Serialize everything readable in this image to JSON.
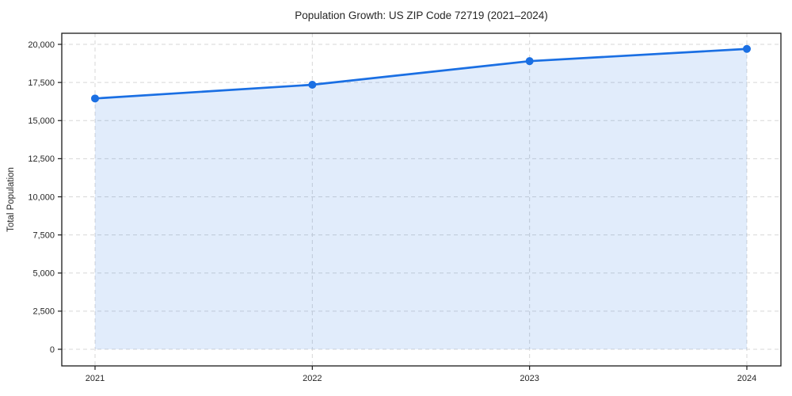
{
  "figure": {
    "title": "Population Growth: US ZIP Code 72719 (2021–2024)",
    "ylabel": "Total Population"
  },
  "chart_data": {
    "type": "area",
    "title": "Population Growth: US ZIP Code 72719 (2021–2024)",
    "xlabel": "",
    "ylabel": "Total Population",
    "categories": [
      "2021",
      "2022",
      "2023",
      "2024"
    ],
    "values": [
      16450,
      17350,
      18900,
      19700
    ],
    "series_name": "Total Population",
    "ylim": [
      0,
      20000
    ],
    "yticks": [
      0,
      2500,
      5000,
      7500,
      10000,
      12500,
      15000,
      17500,
      20000
    ],
    "ytick_labels": [
      "0",
      "2,500",
      "5,000",
      "7,500",
      "10,000",
      "12,500",
      "15,000",
      "17,500",
      "20,000"
    ],
    "grid": "dashed, both axes",
    "legend": "none",
    "marker": "circle",
    "fill_to_zero": true,
    "colors": {
      "line": "#1a6fe3",
      "marker": "#1a6fe3",
      "fill_rgba": "rgba(26,111,227,0.13)",
      "grid": "#d7d7d7",
      "axis_border": "#1a1a1a",
      "text": "#262626",
      "background": "#ffffff"
    }
  }
}
